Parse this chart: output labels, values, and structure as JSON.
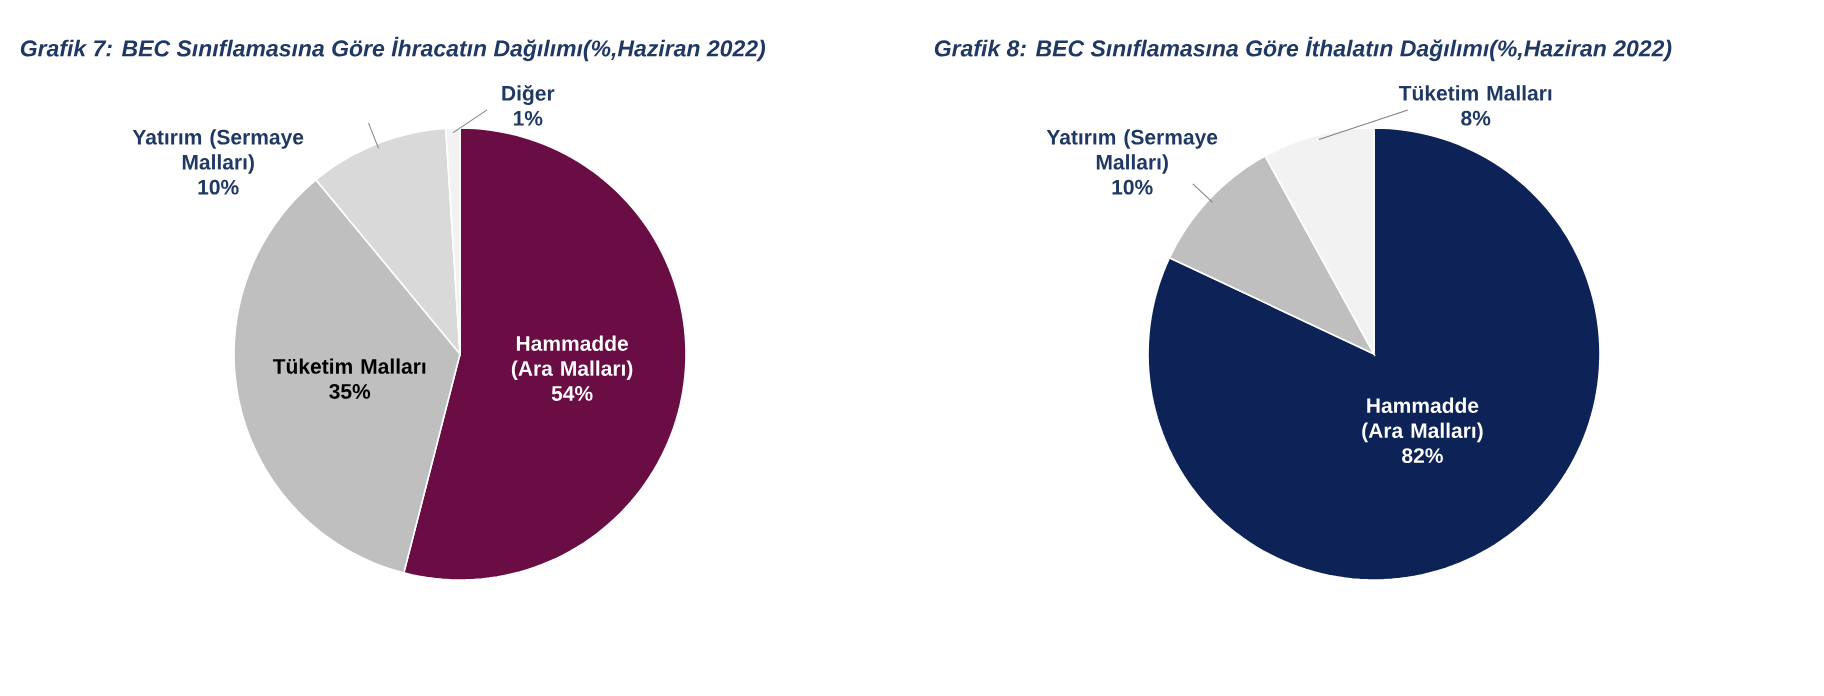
{
  "chart_data": [
    {
      "type": "pie",
      "title": "Grafik 7: BEC Sınıflamasına Göre İhracatın Dağılımı(%,Haziran 2022)",
      "categories": [
        "Hammadde (Ara Malları)",
        "Tüketim Malları",
        "Yatırım (Sermaye Malları)",
        "Diğer"
      ],
      "values": [
        54,
        35,
        10,
        1
      ],
      "value_labels": [
        "54%",
        "35%",
        "10%",
        "1%"
      ],
      "colors": [
        "#6a0d45",
        "#bfbfbf",
        "#d9d9d9",
        "#f2f2f2"
      ]
    },
    {
      "type": "pie",
      "title": "Grafik 8: BEC Sınıflamasına Göre İthalatın Dağılımı(%,Haziran 2022)",
      "categories": [
        "Hammadde (Ara Malları)",
        "Yatırım (Sermaye Malları)",
        "Tüketim Malları"
      ],
      "values": [
        82,
        10,
        8
      ],
      "value_labels": [
        "82%",
        "10%",
        "8%"
      ],
      "colors": [
        "#0d2257",
        "#bfbfbf",
        "#f2f2f2"
      ]
    }
  ]
}
